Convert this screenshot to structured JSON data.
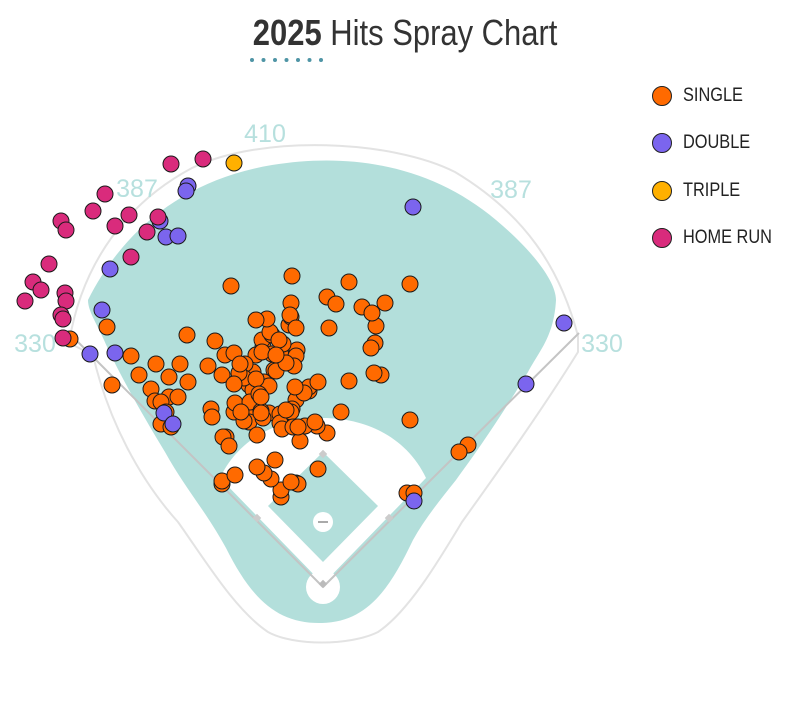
{
  "title": {
    "year": "2025",
    "text": "Hits Spray Chart"
  },
  "colors": {
    "field": "#b3dfdb",
    "single": "#ff6a00",
    "double": "#7b65ee",
    "triple": "#ffb000",
    "home_run": "#d92b7c",
    "accent": "#4f95a6"
  },
  "distances": {
    "left_foul": "330",
    "left_center": "387",
    "center": "410",
    "right_center": "387",
    "right_foul": "330"
  },
  "legend": [
    {
      "key": "single",
      "label": "SINGLE"
    },
    {
      "key": "double",
      "label": "DOUBLE"
    },
    {
      "key": "triple",
      "label": "TRIPLE"
    },
    {
      "key": "home_run",
      "label": "HOME RUN"
    }
  ],
  "chart_data": {
    "type": "scatter",
    "coordinate_note": "hit locations in field-graphic units; home plate = (0,0), x toward right field, y toward center field",
    "series": [
      {
        "name": "SINGLE",
        "color": "#ff6a00",
        "points": [
          [
            -253,
            248
          ],
          [
            -216,
            260
          ],
          [
            -192,
            231
          ],
          [
            -167,
            223
          ],
          [
            -184,
            212
          ],
          [
            -211,
            202
          ],
          [
            -154,
            210
          ],
          [
            -143,
            223
          ],
          [
            -172,
            198
          ],
          [
            -168,
            186
          ],
          [
            -154,
            190
          ],
          [
            -145,
            190
          ],
          [
            -162,
            185
          ],
          [
            -157,
            175
          ],
          [
            -162,
            163
          ],
          [
            -152,
            160
          ],
          [
            -135,
            205
          ],
          [
            -136,
            252
          ],
          [
            -112,
            178
          ],
          [
            -111,
            170
          ],
          [
            -89,
            175
          ],
          [
            -97,
            150
          ],
          [
            -60,
            240
          ],
          [
            -61,
            247
          ],
          [
            -51,
            233
          ],
          [
            -51,
            252
          ],
          [
            -34,
            262
          ],
          [
            -74,
            202
          ],
          [
            -70,
            197
          ],
          [
            -70,
            215
          ],
          [
            -108,
            246
          ],
          [
            -49,
            217
          ],
          [
            -98,
            232
          ],
          [
            -89,
            234
          ],
          [
            -32,
            270
          ],
          [
            -27,
            187
          ],
          [
            -19,
            196
          ],
          [
            -14,
            196
          ],
          [
            -31,
            178
          ],
          [
            -14,
            200
          ],
          [
            -5,
            205
          ],
          [
            -32,
            284
          ],
          [
            -5,
            118
          ],
          [
            -69,
            179
          ],
          [
            -53,
            255
          ],
          [
            -56,
            268
          ],
          [
            -31,
            311
          ],
          [
            4,
            154
          ],
          [
            6,
            259
          ],
          [
            4,
            290
          ],
          [
            53,
            261
          ],
          [
            39,
            280
          ],
          [
            58,
            212
          ],
          [
            -6,
            161
          ],
          [
            -67,
            267
          ],
          [
            62,
            284
          ],
          [
            49,
            274
          ],
          [
            52,
            244
          ],
          [
            -23,
            146
          ],
          [
            -19,
            194
          ],
          [
            -42,
            232
          ],
          [
            -61,
            197
          ],
          [
            -59,
            205
          ],
          [
            -84,
            209
          ],
          [
            -88,
            184
          ],
          [
            -74,
            165
          ],
          [
            -54,
            174
          ],
          [
            -40,
            169
          ],
          [
            -60,
            169
          ],
          [
            -73,
            185
          ],
          [
            26,
            206
          ],
          [
            -67,
            232
          ],
          [
            -43,
            173
          ],
          [
            -66,
            152
          ],
          [
            -61,
            235
          ],
          [
            -18,
            161
          ],
          [
            87,
            167
          ],
          [
            87,
            303
          ],
          [
            84,
            94
          ],
          [
            91,
            94
          ],
          [
            51,
            214
          ],
          [
            48,
            239
          ],
          [
            26,
            305
          ],
          [
            -26,
            237
          ],
          [
            18,
            175
          ],
          [
            -32,
            175
          ],
          [
            -33,
            272
          ],
          [
            -27,
            231
          ],
          [
            13,
            283
          ],
          [
            -47,
            216
          ],
          [
            -29,
            221
          ],
          [
            -37,
            224
          ],
          [
            -40,
            243
          ],
          [
            -44,
            247
          ],
          [
            -47,
            232
          ],
          [
            -43,
            164
          ],
          [
            -41,
            158
          ],
          [
            -30,
            160
          ],
          [
            -25,
            160
          ],
          [
            -28,
            200
          ],
          [
            -8,
            165
          ],
          [
            -37,
            177
          ],
          [
            -62,
            176
          ],
          [
            -54,
            201
          ],
          [
            -79,
            166
          ],
          [
            -78,
            223
          ],
          [
            -79,
            209
          ],
          [
            -84,
            214
          ],
          [
            -83,
            223
          ],
          [
            -82,
            175
          ],
          [
            -67,
            208
          ],
          [
            -64,
            193
          ],
          [
            -62,
            190
          ],
          [
            -27,
            259
          ],
          [
            -92,
            301
          ],
          [
            -42,
            90
          ],
          [
            -42,
            97
          ],
          [
            -52,
            108
          ],
          [
            -48,
            127
          ],
          [
            -59,
            114
          ],
          [
            -66,
            120
          ],
          [
            -62,
            174
          ],
          [
            -100,
            150
          ],
          [
            -94,
            141
          ],
          [
            -101,
            212
          ],
          [
            -115,
            221
          ],
          [
            -89,
            203
          ],
          [
            145,
            142
          ],
          [
            136,
            135
          ],
          [
            -101,
            103
          ],
          [
            -101,
            106
          ],
          [
            -88,
            112
          ],
          [
            -27,
            104
          ],
          [
            -25,
            103
          ],
          [
            -32,
            105
          ]
        ]
      },
      {
        "name": "DOUBLE",
        "color": "#7b65ee",
        "points": [
          [
            -135,
            401
          ],
          [
            -137,
            396
          ],
          [
            -163,
            366
          ],
          [
            -157,
            350
          ],
          [
            -145,
            351
          ],
          [
            -213,
            318
          ],
          [
            -221,
            277
          ],
          [
            -233,
            233
          ],
          [
            -208,
            234
          ],
          [
            -159,
            174
          ],
          [
            -150,
            163
          ],
          [
            90,
            380
          ],
          [
            241,
            264
          ],
          [
            203,
            203
          ],
          [
            91,
            86
          ]
        ]
      },
      {
        "name": "TRIPLE",
        "color": "#ffb000",
        "points": [
          [
            -89,
            424
          ]
        ]
      },
      {
        "name": "HOME RUN",
        "color": "#d92b7c",
        "points": [
          [
            -152,
            423
          ],
          [
            -120,
            428
          ],
          [
            -218,
            393
          ],
          [
            -230,
            376
          ],
          [
            -262,
            366
          ],
          [
            -257,
            357
          ],
          [
            -208,
            361
          ],
          [
            -194,
            372
          ],
          [
            -274,
            323
          ],
          [
            -290,
            305
          ],
          [
            -282,
            297
          ],
          [
            -258,
            294
          ],
          [
            -257,
            286
          ],
          [
            -298,
            286
          ],
          [
            -262,
            272
          ],
          [
            -260,
            249
          ],
          [
            -165,
            370
          ],
          [
            -176,
            355
          ],
          [
            -192,
            330
          ],
          [
            -260,
            268
          ]
        ]
      }
    ]
  }
}
